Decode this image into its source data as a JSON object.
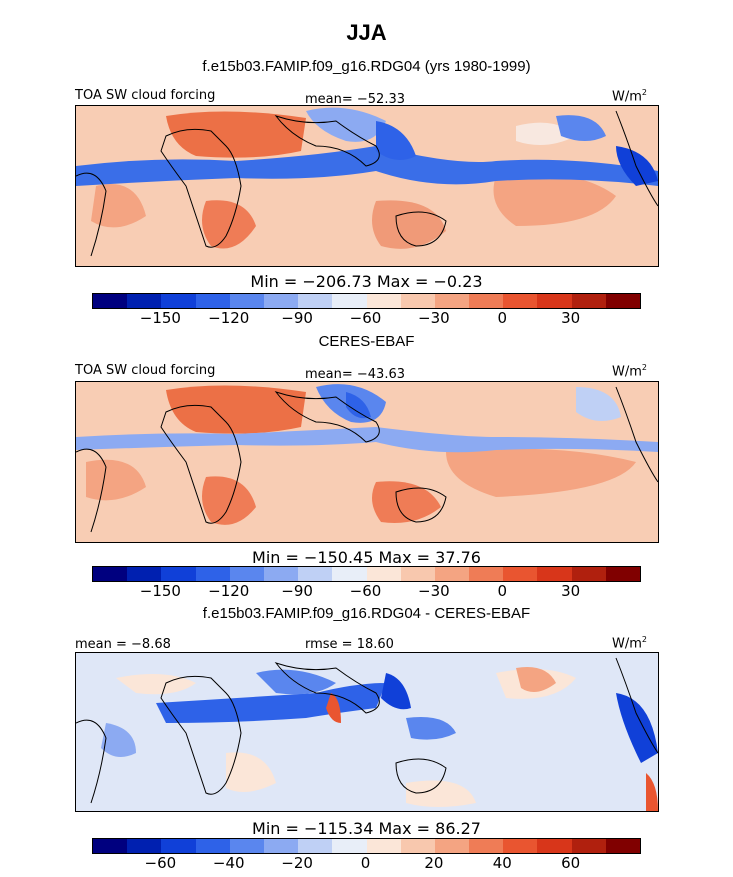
{
  "title": "JJA",
  "panels": [
    {
      "title": "f.e15b03.FAMIP.f09_g16.RDG04 (yrs 1980-1999)",
      "left_label": "TOA SW cloud forcing",
      "center_label": "mean=  −52.33",
      "units": "W/m",
      "units_sup": "2",
      "minmax": "Min = −206.73 Max =  −0.23",
      "colorbar": {
        "colors": [
          "#00007f",
          "#0020b0",
          "#1040d8",
          "#2e62e8",
          "#5a86ee",
          "#8caaf2",
          "#bfd0f5",
          "#e8eef8",
          "#fbe6d8",
          "#f8c8ae",
          "#f4a482",
          "#ef7c56",
          "#e95530",
          "#d8361a",
          "#b0200e",
          "#800000"
        ],
        "ticks": [
          "−150",
          "−120",
          "−90",
          "−60",
          "−30",
          "0",
          "30"
        ]
      }
    },
    {
      "title": "CERES-EBAF",
      "left_label": "TOA SW cloud forcing",
      "center_label": "mean=  −43.63",
      "units": "W/m",
      "units_sup": "2",
      "minmax": "Min = −150.45 Max =  37.76",
      "colorbar": {
        "colors": [
          "#00007f",
          "#0020b0",
          "#1040d8",
          "#2e62e8",
          "#5a86ee",
          "#8caaf2",
          "#bfd0f5",
          "#e8eef8",
          "#fbe6d8",
          "#f8c8ae",
          "#f4a482",
          "#ef7c56",
          "#e95530",
          "#d8361a",
          "#b0200e",
          "#800000"
        ],
        "ticks": [
          "−150",
          "−120",
          "−90",
          "−60",
          "−30",
          "0",
          "30"
        ]
      }
    },
    {
      "title": "f.e15b03.FAMIP.f09_g16.RDG04 - CERES-EBAF",
      "left_label": "mean =  −8.68",
      "center_label": "rmse =  18.60",
      "units": "W/m",
      "units_sup": "2",
      "minmax": "Min = −115.34 Max =  86.27",
      "colorbar": {
        "colors": [
          "#00007f",
          "#0020b0",
          "#1040d8",
          "#2e62e8",
          "#5a86ee",
          "#8caaf2",
          "#bfd0f5",
          "#e8eef8",
          "#fbe6d8",
          "#f8c8ae",
          "#f4a482",
          "#ef7c56",
          "#e95530",
          "#d8361a",
          "#b0200e",
          "#800000"
        ],
        "ticks": [
          "−60",
          "−40",
          "−20",
          "0",
          "20",
          "40",
          "60"
        ]
      }
    }
  ]
}
